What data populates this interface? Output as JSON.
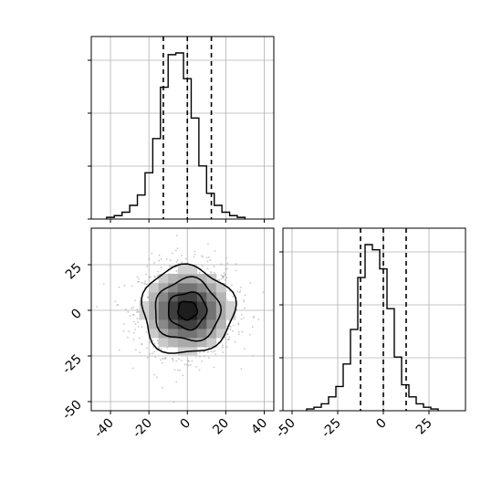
{
  "chart_data": [
    {
      "type": "histogram",
      "panel": "top-left marginal (parameter 1)",
      "x_range": [
        -50,
        45
      ],
      "bin_width": 4,
      "bin_edges_start": -42,
      "counts": [
        1,
        2,
        4,
        8,
        14,
        27,
        47,
        77,
        96,
        97,
        82,
        59,
        31,
        15,
        8,
        4,
        2,
        1
      ],
      "dashed_lines": [
        -12.5,
        0,
        12.5
      ],
      "y_tick_count": 4,
      "grid": true
    },
    {
      "type": "histogram",
      "panel": "bottom-right marginal (parameter 2)",
      "x_range": [
        -55,
        45
      ],
      "x_ticks": [
        -50,
        -25,
        0,
        25
      ],
      "bin_width": 4,
      "bin_edges_start": -42,
      "counts": [
        1,
        2,
        4,
        8,
        14,
        27,
        47,
        77,
        96,
        93,
        82,
        59,
        31,
        15,
        8,
        4,
        2,
        1
      ],
      "dashed_lines": [
        -12.5,
        0,
        12.5
      ],
      "grid": true
    },
    {
      "type": "scatter_density_contour",
      "panel": "bottom-left joint (parameter 1 vs parameter 2)",
      "x_range": [
        -50,
        45
      ],
      "y_range": [
        -55,
        45
      ],
      "x_ticks": [
        -40,
        -20,
        0,
        20,
        40
      ],
      "y_ticks": [
        -50,
        -25,
        0,
        25
      ],
      "center": [
        0,
        0
      ],
      "sigma": 12.5,
      "contour_radii": [
        24,
        17,
        10,
        5
      ],
      "grid": true
    }
  ],
  "ticks": {
    "hist1_x": [
      "-40",
      "-20",
      "0",
      "20",
      "40"
    ],
    "hist2_x": [
      "-50",
      "-25",
      "0",
      "25"
    ],
    "joint_x": [
      "-40",
      "-20",
      "0",
      "20",
      "40"
    ],
    "joint_y": [
      "-50",
      "-25",
      "0",
      "25"
    ]
  }
}
